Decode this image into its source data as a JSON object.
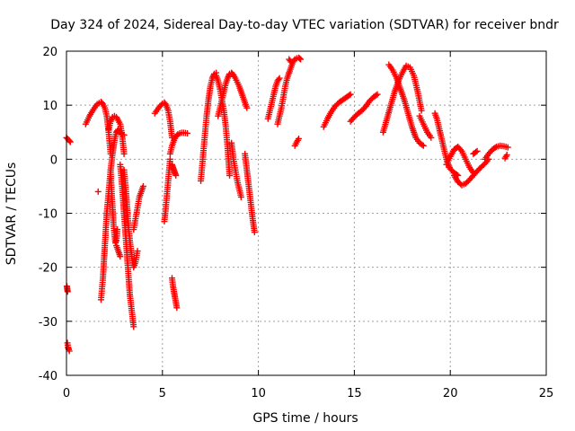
{
  "chart_data": {
    "type": "scatter",
    "title": "Day 324 of 2024, Sidereal Day-to-day VTEC variation (SDTVAR) for receiver bndr",
    "xlabel": "GPS time / hours",
    "ylabel": "SDTVAR / TECUs",
    "xlim": [
      0,
      25
    ],
    "ylim": [
      -40,
      20
    ],
    "xticks": [
      "0",
      "5",
      "10",
      "15",
      "20",
      "25"
    ],
    "yticks": [
      "-40",
      "-30",
      "-20",
      "-10",
      "0",
      "10",
      "20"
    ],
    "grid": true,
    "marker": "plus",
    "color": "#ff0000",
    "segments": [
      {
        "x": [
          0.0,
          0.05,
          0.1,
          0.15,
          0.2
        ],
        "y": [
          4,
          3.8,
          3.6,
          3.4,
          3.2
        ]
      },
      {
        "x": [
          0.02,
          0.04,
          0.06
        ],
        "y": [
          -23.5,
          -24,
          -24.5
        ]
      },
      {
        "x": [
          0.05,
          0.08,
          0.12,
          0.15
        ],
        "y": [
          -34,
          -34.8,
          -35.2,
          -35.5
        ]
      },
      {
        "x": [
          1.0,
          1.2,
          1.4,
          1.6,
          1.8,
          1.9,
          2.0,
          2.1,
          2.2,
          2.3
        ],
        "y": [
          6.5,
          8,
          9.2,
          10.2,
          10.6,
          10.2,
          9.5,
          8,
          5,
          1
        ]
      },
      {
        "x": [
          2.3,
          2.35,
          2.4,
          2.45,
          2.5,
          2.55,
          2.6,
          2.65
        ],
        "y": [
          -2,
          -6,
          -9,
          -12,
          -14,
          -15.5,
          -15,
          -13
        ]
      },
      {
        "x": [
          2.6,
          2.7,
          2.8
        ],
        "y": [
          -16,
          -17,
          -18
        ]
      },
      {
        "x": [
          1.65
        ],
        "y": [
          -6
        ]
      },
      {
        "x": [
          1.8,
          1.85,
          1.9,
          1.95,
          2.0,
          2.05,
          2.1
        ],
        "y": [
          -26,
          -24,
          -22,
          -19,
          -16,
          -13,
          -10
        ]
      },
      {
        "x": [
          2.1,
          2.2,
          2.3,
          2.4,
          2.5,
          2.6,
          2.7,
          2.8,
          2.9,
          3.0
        ],
        "y": [
          -10,
          -6,
          -2,
          1,
          3.5,
          5,
          5.5,
          5,
          4.5,
          4.5
        ]
      },
      {
        "x": [
          2.2,
          2.3,
          2.4,
          2.5,
          2.6,
          2.7,
          2.8,
          2.9,
          3.0
        ],
        "y": [
          5.5,
          7,
          7.8,
          8,
          7.8,
          7.2,
          6.5,
          4.5,
          1
        ]
      },
      {
        "x": [
          2.8,
          2.9,
          3.0,
          3.1,
          3.2,
          3.3,
          3.4,
          3.5
        ],
        "y": [
          -1,
          -5,
          -10,
          -15,
          -20,
          -25,
          -28,
          -31
        ]
      },
      {
        "x": [
          3.0,
          3.1,
          3.2,
          3.3,
          3.4,
          3.5,
          3.6,
          3.7
        ],
        "y": [
          -2,
          -6,
          -11,
          -15,
          -18,
          -20,
          -19,
          -17
        ]
      },
      {
        "x": [
          3.5,
          3.6,
          3.7,
          3.8,
          3.9,
          4.0
        ],
        "y": [
          -13,
          -11,
          -9,
          -7,
          -6,
          -5
        ]
      },
      {
        "x": [
          4.6,
          4.8,
          5.0,
          5.1,
          5.2,
          5.3,
          5.4,
          5.5
        ],
        "y": [
          8.5,
          9.5,
          10.3,
          10.5,
          10,
          9,
          7,
          4
        ]
      },
      {
        "x": [
          5.1,
          5.15,
          5.2,
          5.25,
          5.3,
          5.35,
          5.4
        ],
        "y": [
          -11.5,
          -10,
          -8,
          -6,
          -4,
          -2,
          0
        ]
      },
      {
        "x": [
          5.4,
          5.5,
          5.6,
          5.7,
          5.8,
          5.9,
          6.0,
          6.1,
          6.3
        ],
        "y": [
          1,
          2.5,
          3.5,
          4.2,
          4.6,
          4.8,
          4.9,
          4.9,
          4.8
        ]
      },
      {
        "x": [
          5.5,
          5.55,
          5.6,
          5.65,
          5.7
        ],
        "y": [
          -1,
          -1.5,
          -2,
          -2.5,
          -3
        ]
      },
      {
        "x": [
          5.5,
          5.55,
          5.6,
          5.65,
          5.7,
          5.75
        ],
        "y": [
          -22,
          -23.5,
          -24.5,
          -25.5,
          -26.5,
          -27.5
        ]
      },
      {
        "x": [
          7.0,
          7.1,
          7.2,
          7.3,
          7.4,
          7.5,
          7.6,
          7.7,
          7.8
        ],
        "y": [
          -4,
          0,
          4,
          8,
          11,
          13.5,
          15,
          15.8,
          16
        ]
      },
      {
        "x": [
          7.8,
          7.9,
          8.0,
          8.1,
          8.2,
          8.3,
          8.4,
          8.5
        ],
        "y": [
          15.5,
          14.5,
          13,
          11,
          9,
          6,
          2,
          -3
        ]
      },
      {
        "x": [
          7.9,
          8.0,
          8.1,
          8.2,
          8.3,
          8.4,
          8.5,
          8.6,
          8.7,
          8.8,
          9.0,
          9.2,
          9.4
        ],
        "y": [
          8,
          9.5,
          11,
          12.5,
          14,
          15,
          15.8,
          16,
          15.6,
          15,
          13.5,
          11.5,
          9.5
        ]
      },
      {
        "x": [
          8.6,
          8.7,
          8.8,
          8.9,
          9.0,
          9.1
        ],
        "y": [
          3,
          0,
          -2,
          -4,
          -5.5,
          -7
        ]
      },
      {
        "x": [
          9.3,
          9.4,
          9.5,
          9.6,
          9.7,
          9.8
        ],
        "y": [
          1,
          -2,
          -5,
          -8,
          -11,
          -13.5
        ]
      },
      {
        "x": [
          10.5,
          10.6,
          10.7,
          10.8,
          10.9,
          11.0,
          11.1
        ],
        "y": [
          7.5,
          9,
          10.5,
          12,
          13.5,
          14.5,
          15
        ]
      },
      {
        "x": [
          11.0,
          11.1,
          11.2,
          11.3,
          11.4,
          11.5,
          11.6
        ],
        "y": [
          6.5,
          8,
          9.5,
          11.5,
          13.5,
          15,
          16
        ]
      },
      {
        "x": [
          11.6,
          11.7,
          11.8,
          11.9,
          12.0,
          12.1,
          12.2
        ],
        "y": [
          16,
          17,
          18,
          18.5,
          18.7,
          18.8,
          18.5
        ]
      },
      {
        "x": [
          11.6,
          11.7
        ],
        "y": [
          18.5,
          18
        ]
      },
      {
        "x": [
          11.9,
          12.0,
          12.1
        ],
        "y": [
          2.5,
          3.2,
          3.8
        ]
      },
      {
        "x": [
          13.4,
          13.6,
          13.8,
          14.0,
          14.2,
          14.4,
          14.6,
          14.8
        ],
        "y": [
          6,
          7.5,
          8.8,
          9.8,
          10.5,
          11,
          11.5,
          12
        ]
      },
      {
        "x": [
          14.8,
          15.0,
          15.2,
          15.4,
          15.6,
          15.8,
          16.0,
          16.2
        ],
        "y": [
          7,
          7.8,
          8.5,
          9,
          9.8,
          10.8,
          11.5,
          12
        ]
      },
      {
        "x": [
          16.5,
          16.7,
          16.9,
          17.1,
          17.3,
          17.5,
          17.7,
          17.9,
          18.1,
          18.3,
          18.5
        ],
        "y": [
          5,
          7.5,
          10,
          12.5,
          14.5,
          16,
          17.3,
          17,
          15.5,
          12.5,
          9
        ]
      },
      {
        "x": [
          16.8,
          17.0,
          17.2,
          17.4,
          17.6,
          17.8,
          18.0,
          18.2,
          18.4,
          18.6
        ],
        "y": [
          17.5,
          16.5,
          15,
          13,
          11,
          8.5,
          6,
          4,
          3,
          2.5
        ]
      },
      {
        "x": [
          18.4,
          18.6,
          18.8,
          19.0
        ],
        "y": [
          8,
          6.5,
          5,
          4
        ]
      },
      {
        "x": [
          19.2,
          19.3,
          19.4,
          19.5,
          19.6,
          19.7,
          19.8,
          19.9,
          20.0,
          20.2,
          20.4
        ],
        "y": [
          8.5,
          7.5,
          6,
          4.5,
          3,
          1.5,
          0,
          -1,
          -1.8,
          -2.5,
          -3
        ]
      },
      {
        "x": [
          19.8,
          20.0,
          20.2,
          20.4,
          20.6,
          20.8,
          21.0,
          21.2
        ],
        "y": [
          -1,
          0.5,
          1.8,
          2.3,
          1.5,
          0,
          -1.5,
          -2.5
        ]
      },
      {
        "x": [
          20.2,
          20.4,
          20.6,
          20.8,
          21.0,
          21.2,
          21.4,
          21.6,
          21.8,
          22.0
        ],
        "y": [
          -3,
          -4.2,
          -4.8,
          -4.5,
          -3.8,
          -3,
          -2.2,
          -1.5,
          -0.8,
          0
        ]
      },
      {
        "x": [
          21.2,
          21.4
        ],
        "y": [
          1,
          1.5
        ]
      },
      {
        "x": [
          21.8,
          22.0,
          22.2,
          22.4,
          22.6,
          22.8,
          23.0
        ],
        "y": [
          0,
          1,
          1.8,
          2.3,
          2.5,
          2.4,
          2.2
        ]
      },
      {
        "x": [
          22.85,
          22.9,
          22.95
        ],
        "y": [
          0.2,
          0.5,
          0.8
        ]
      }
    ]
  }
}
